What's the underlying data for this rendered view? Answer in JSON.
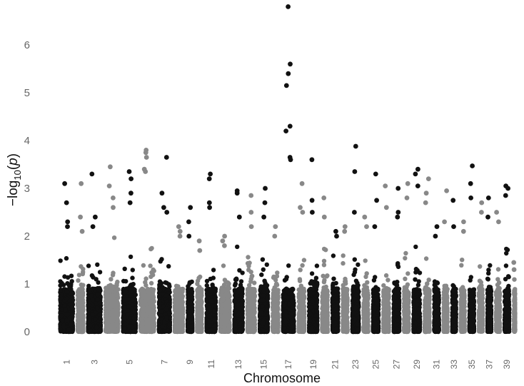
{
  "chart_data": {
    "type": "scatter",
    "subtype": "manhattan",
    "title": "",
    "xlabel": "Chromosome",
    "ylabel_prefix": "−log",
    "ylabel_sub": "10",
    "ylabel_var": "p",
    "ylim": [
      0,
      6.8
    ],
    "yticks": [
      0,
      1,
      2,
      3,
      4,
      5,
      6
    ],
    "grid": false,
    "legend": "none",
    "colors": {
      "odd": "#111111",
      "even": "#888888"
    },
    "x_tick_labels": [
      "1",
      "3",
      "5",
      "7",
      "9",
      "11",
      "13",
      "15",
      "17",
      "19",
      "21",
      "23",
      "25",
      "27",
      "29",
      "31",
      "33",
      "35",
      "37",
      "39"
    ],
    "chromosomes": [
      {
        "chr": 1,
        "n": 900,
        "peaks": [
          3.1,
          2.7,
          2.3,
          2.2
        ]
      },
      {
        "chr": 2,
        "n": 500,
        "peaks": [
          3.1,
          2.4,
          2.1
        ]
      },
      {
        "chr": 3,
        "n": 900,
        "peaks": [
          3.3,
          2.4,
          2.2
        ]
      },
      {
        "chr": 4,
        "n": 900,
        "peaks": [
          3.45,
          3.05,
          2.8,
          2.6
        ]
      },
      {
        "chr": 5,
        "n": 900,
        "peaks": [
          3.35,
          3.2,
          2.9,
          2.7
        ]
      },
      {
        "chr": 6,
        "n": 950,
        "peaks": [
          3.8,
          3.75,
          3.65,
          3.4,
          3.35
        ]
      },
      {
        "chr": 7,
        "n": 800,
        "peaks": [
          3.65,
          2.9,
          2.6,
          2.5
        ]
      },
      {
        "chr": 8,
        "n": 650,
        "peaks": [
          2.2,
          2.1,
          2.0
        ]
      },
      {
        "chr": 9,
        "n": 450,
        "peaks": [
          2.6,
          2.3,
          2.0
        ]
      },
      {
        "chr": 10,
        "n": 450,
        "peaks": [
          1.9,
          1.7
        ]
      },
      {
        "chr": 11,
        "n": 700,
        "peaks": [
          3.3,
          3.2,
          2.7,
          2.6
        ]
      },
      {
        "chr": 12,
        "n": 700,
        "peaks": [
          2.0,
          1.9,
          1.8
        ]
      },
      {
        "chr": 13,
        "n": 650,
        "peaks": [
          2.95,
          2.9,
          2.4
        ]
      },
      {
        "chr": 14,
        "n": 600,
        "peaks": [
          2.85,
          2.5,
          2.2
        ]
      },
      {
        "chr": 15,
        "n": 650,
        "peaks": [
          3.0,
          2.7,
          2.4
        ]
      },
      {
        "chr": 16,
        "n": 500,
        "peaks": [
          2.2,
          2.0
        ]
      },
      {
        "chr": 17,
        "n": 800,
        "peaks": [
          6.8,
          5.6,
          5.4,
          5.15,
          4.3,
          4.2,
          3.65,
          3.6
        ]
      },
      {
        "chr": 18,
        "n": 500,
        "peaks": [
          3.1,
          2.6,
          2.5
        ]
      },
      {
        "chr": 19,
        "n": 650,
        "peaks": [
          3.6,
          2.75,
          2.5
        ]
      },
      {
        "chr": 20,
        "n": 500,
        "peaks": [
          2.8,
          2.4
        ]
      },
      {
        "chr": 21,
        "n": 500,
        "peaks": [
          2.1,
          2.0
        ]
      },
      {
        "chr": 22,
        "n": 450,
        "peaks": [
          2.2,
          2.1
        ]
      },
      {
        "chr": 23,
        "n": 550,
        "peaks": [
          3.88,
          3.35,
          2.5
        ]
      },
      {
        "chr": 24,
        "n": 450,
        "peaks": [
          2.4,
          2.2
        ]
      },
      {
        "chr": 25,
        "n": 500,
        "peaks": [
          3.3,
          2.75,
          2.2
        ]
      },
      {
        "chr": 26,
        "n": 500,
        "peaks": [
          3.05,
          2.6
        ]
      },
      {
        "chr": 27,
        "n": 500,
        "peaks": [
          3.0,
          2.5,
          2.4
        ]
      },
      {
        "chr": 28,
        "n": 450,
        "peaks": [
          3.1,
          2.8
        ]
      },
      {
        "chr": 29,
        "n": 550,
        "peaks": [
          3.4,
          3.3,
          3.05
        ]
      },
      {
        "chr": 30,
        "n": 450,
        "peaks": [
          3.2,
          2.9,
          2.7
        ]
      },
      {
        "chr": 31,
        "n": 450,
        "peaks": [
          2.2,
          2.0
        ]
      },
      {
        "chr": 32,
        "n": 400,
        "peaks": [
          2.95,
          2.3
        ]
      },
      {
        "chr": 33,
        "n": 400,
        "peaks": [
          2.75,
          2.2
        ]
      },
      {
        "chr": 34,
        "n": 400,
        "peaks": [
          2.3,
          2.1
        ]
      },
      {
        "chr": 35,
        "n": 450,
        "peaks": [
          3.47,
          3.1,
          2.8
        ]
      },
      {
        "chr": 36,
        "n": 400,
        "peaks": [
          2.7,
          2.5
        ]
      },
      {
        "chr": 37,
        "n": 400,
        "peaks": [
          2.8,
          2.4
        ]
      },
      {
        "chr": 38,
        "n": 400,
        "peaks": [
          2.5,
          2.3
        ]
      },
      {
        "chr": 39,
        "n": 450,
        "peaks": [
          3.05,
          3.0,
          2.85
        ]
      },
      {
        "chr": 40,
        "n": 250,
        "peaks": [
          1.45,
          1.3
        ]
      }
    ]
  }
}
